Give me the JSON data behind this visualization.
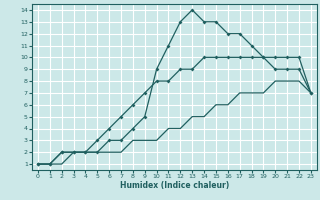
{
  "xlabel": "Humidex (Indice chaleur)",
  "bg_color": "#cce8e8",
  "grid_color": "#ffffff",
  "line_color": "#206060",
  "xlim": [
    -0.5,
    23.5
  ],
  "ylim": [
    0.5,
    14.5
  ],
  "xticks": [
    0,
    1,
    2,
    3,
    4,
    5,
    6,
    7,
    8,
    9,
    10,
    11,
    12,
    13,
    14,
    15,
    16,
    17,
    18,
    19,
    20,
    21,
    22,
    23
  ],
  "yticks": [
    1,
    2,
    3,
    4,
    5,
    6,
    7,
    8,
    9,
    10,
    11,
    12,
    13,
    14
  ],
  "curve1_x": [
    0,
    1,
    2,
    3,
    4,
    5,
    6,
    7,
    8,
    9,
    10,
    11,
    12,
    13,
    14,
    15,
    16,
    17,
    18,
    19,
    20,
    21,
    22,
    23
  ],
  "curve1_y": [
    1,
    1,
    2,
    2,
    2,
    2,
    3,
    3,
    4,
    5,
    9,
    11,
    13,
    14,
    13,
    13,
    12,
    12,
    11,
    10,
    10,
    10,
    10,
    7
  ],
  "curve2_x": [
    0,
    1,
    2,
    3,
    4,
    5,
    6,
    7,
    8,
    9,
    10,
    11,
    12,
    13,
    14,
    15,
    16,
    17,
    18,
    19,
    20,
    21,
    22,
    23
  ],
  "curve2_y": [
    1,
    1,
    2,
    2,
    2,
    3,
    4,
    5,
    6,
    7,
    8,
    8,
    9,
    9,
    10,
    10,
    10,
    10,
    10,
    10,
    9,
    9,
    9,
    7
  ],
  "curve3_x": [
    0,
    1,
    2,
    3,
    4,
    5,
    6,
    7,
    8,
    9,
    10,
    11,
    12,
    13,
    14,
    15,
    16,
    17,
    18,
    19,
    20,
    21,
    22,
    23
  ],
  "curve3_y": [
    1,
    1,
    1,
    2,
    2,
    2,
    2,
    2,
    3,
    3,
    3,
    4,
    4,
    5,
    5,
    6,
    6,
    7,
    7,
    7,
    8,
    8,
    8,
    7
  ]
}
